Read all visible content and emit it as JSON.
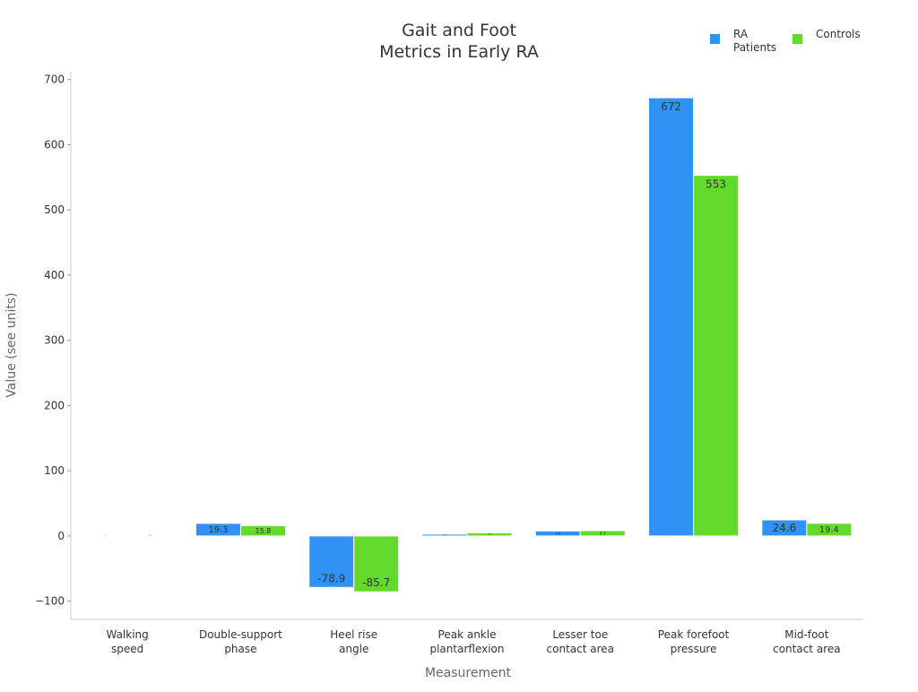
{
  "chart_data": {
    "type": "bar",
    "title_lines": [
      "Gait and Foot",
      "Metrics in Early RA"
    ],
    "xlabel": "Measurement",
    "ylabel": "Value (see units)",
    "ylim": [
      -128,
      712
    ],
    "yticks": [
      -100,
      0,
      100,
      200,
      300,
      400,
      500,
      600,
      700
    ],
    "ytick_labels": [
      "−100",
      "0",
      "100",
      "200",
      "300",
      "400",
      "500",
      "600",
      "700"
    ],
    "categories": [
      [
        "Walking",
        "speed"
      ],
      [
        "Double-support",
        "phase"
      ],
      [
        "Heel rise",
        "angle"
      ],
      [
        "Peak ankle",
        "plantarflexion"
      ],
      [
        "Lesser toe",
        "contact area"
      ],
      [
        "Peak forefoot",
        "pressure"
      ],
      [
        "Mid-foot",
        "contact area"
      ]
    ],
    "series": [
      {
        "name": "RA Patients",
        "legend_lines": [
          "RA",
          "Patients"
        ],
        "color": "#2e93f5",
        "values": [
          1.0,
          19.3,
          -78.9,
          2.8,
          7.6,
          672,
          24.6
        ]
      },
      {
        "name": "Controls",
        "legend_lines": [
          "Controls"
        ],
        "color": "#63d92a",
        "values": [
          1.3,
          15.8,
          -85.7,
          4.6,
          8.1,
          553,
          19.4
        ]
      }
    ],
    "grid": false,
    "legend_position": "top-right"
  }
}
